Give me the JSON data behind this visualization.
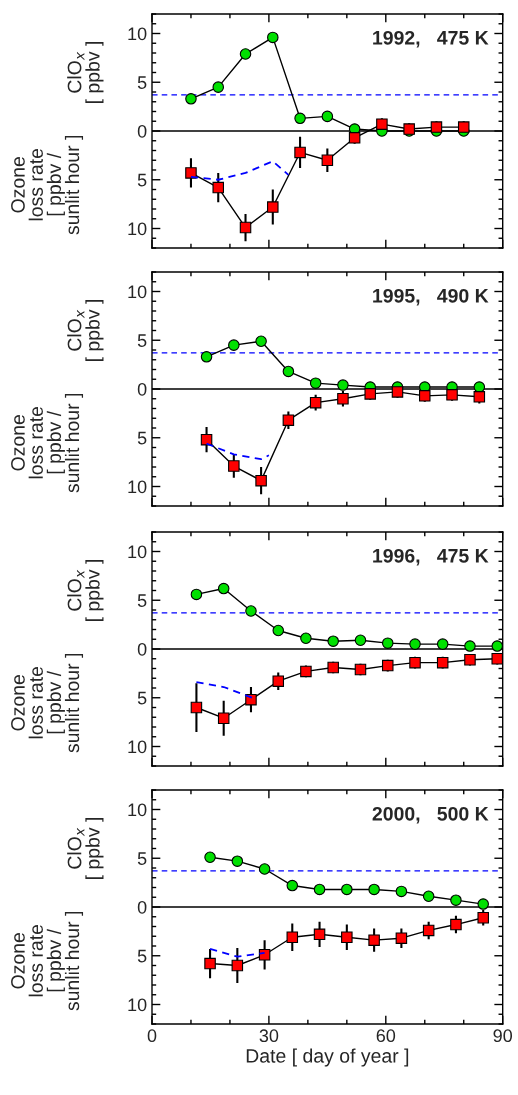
{
  "chart_data": [
    {
      "type": "line",
      "title": "1992,   475 K",
      "ylabel": "ClO$_{x}$\n[ ppbv ]",
      "annotations": [
        "Ozone\nloss rate\n[ ppbv /\nsunlit hour ]"
      ],
      "xlim": [
        0,
        90
      ],
      "xticks": [
        0,
        {
          "value": 10,
          "label": null
        },
        {
          "value": 20,
          "label": null
        },
        30,
        {
          "value": 40,
          "label": null
        },
        {
          "value": 50,
          "label": null
        },
        60,
        {
          "value": 70,
          "label": null
        },
        {
          "value": 80,
          "label": null
        },
        90
      ],
      "ylim": [
        -12,
        12
      ],
      "yticks": [
        {
          "value": -12,
          "label": null
        },
        {
          "value": -11,
          "label": null
        },
        {
          "value": -10,
          "label": "10"
        },
        {
          "value": -9,
          "label": null
        },
        {
          "value": -8,
          "label": null
        },
        {
          "value": -7,
          "label": null
        },
        {
          "value": -6,
          "label": null
        },
        {
          "value": -5,
          "label": "5"
        },
        {
          "value": -4,
          "label": null
        },
        {
          "value": -3,
          "label": null
        },
        {
          "value": -2,
          "label": null
        },
        {
          "value": -1,
          "label": null
        },
        0,
        {
          "value": 1,
          "label": null
        },
        {
          "value": 2,
          "label": null
        },
        {
          "value": 3,
          "label": null
        },
        {
          "value": 4,
          "label": null
        },
        5,
        {
          "value": 6,
          "label": null
        },
        {
          "value": 7,
          "label": null
        },
        {
          "value": 8,
          "label": null
        },
        {
          "value": 9,
          "label": null
        },
        10,
        {
          "value": 11,
          "label": null
        },
        {
          "value": 12,
          "label": null
        }
      ],
      "tick_labels": "y",
      "grid": false,
      "ref_lines": [
        {
          "axis": "y",
          "value": 0,
          "color": "#000000",
          "line_style": "solid"
        },
        {
          "axis": "y",
          "value": 3.7,
          "color": "#0000ff",
          "line_style": "dashed"
        }
      ],
      "series": [
        {
          "type": "line",
          "color": "#00e000",
          "marker": "circle",
          "line_style": "solid",
          "x": [
            10,
            17,
            24,
            31,
            38,
            45,
            52,
            59,
            66,
            73,
            80
          ],
          "values": [
            3.3,
            4.5,
            7.9,
            9.6,
            1.3,
            1.5,
            0.2,
            0,
            0,
            0,
            0
          ]
        },
        {
          "type": "line",
          "color": "#ff0000",
          "marker": "square",
          "line_style": "solid",
          "x": [
            10,
            17,
            24,
            31,
            38,
            45,
            52,
            59,
            66,
            73,
            80
          ],
          "values": [
            -4.3,
            -5.8,
            -9.9,
            -7.8,
            -2.2,
            -3.0,
            -0.7,
            0.7,
            0.2,
            0.4,
            0.4
          ],
          "errors": [
            1.5,
            1.5,
            1.4,
            1.8,
            1.6,
            1.2,
            0.6,
            0.6,
            0.6,
            0.6,
            0.6
          ]
        },
        {
          "type": "line",
          "color": "#0000ff",
          "marker": "none",
          "line_style": "dashed",
          "x": [
            10,
            17,
            24,
            31,
            35
          ],
          "values": [
            -4.7,
            -5.0,
            -4.3,
            -3.1,
            -4.5
          ]
        }
      ]
    },
    {
      "type": "line",
      "title": "1995,   490 K",
      "ylabel": "ClO$_{x}$\n[ ppbv ]",
      "annotations": [
        "Ozone\nloss rate\n[ ppbv /\nsunlit hour ]"
      ],
      "xlim": [
        0,
        90
      ],
      "xticks": [
        0,
        {
          "value": 10,
          "label": null
        },
        {
          "value": 20,
          "label": null
        },
        30,
        {
          "value": 40,
          "label": null
        },
        {
          "value": 50,
          "label": null
        },
        60,
        {
          "value": 70,
          "label": null
        },
        {
          "value": 80,
          "label": null
        },
        90
      ],
      "ylim": [
        -12,
        12
      ],
      "yticks": [
        {
          "value": -12,
          "label": null
        },
        {
          "value": -11,
          "label": null
        },
        {
          "value": -10,
          "label": "10"
        },
        {
          "value": -9,
          "label": null
        },
        {
          "value": -8,
          "label": null
        },
        {
          "value": -7,
          "label": null
        },
        {
          "value": -6,
          "label": null
        },
        {
          "value": -5,
          "label": "5"
        },
        {
          "value": -4,
          "label": null
        },
        {
          "value": -3,
          "label": null
        },
        {
          "value": -2,
          "label": null
        },
        {
          "value": -1,
          "label": null
        },
        0,
        {
          "value": 1,
          "label": null
        },
        {
          "value": 2,
          "label": null
        },
        {
          "value": 3,
          "label": null
        },
        {
          "value": 4,
          "label": null
        },
        5,
        {
          "value": 6,
          "label": null
        },
        {
          "value": 7,
          "label": null
        },
        {
          "value": 8,
          "label": null
        },
        {
          "value": 9,
          "label": null
        },
        10,
        {
          "value": 11,
          "label": null
        },
        {
          "value": 12,
          "label": null
        }
      ],
      "tick_labels": "y",
      "grid": false,
      "ref_lines": [
        {
          "axis": "y",
          "value": 0,
          "color": "#000000",
          "line_style": "solid"
        },
        {
          "axis": "y",
          "value": 3.7,
          "color": "#0000ff",
          "line_style": "dashed"
        }
      ],
      "series": [
        {
          "type": "line",
          "color": "#00e000",
          "marker": "circle",
          "line_style": "solid",
          "x": [
            14,
            21,
            28,
            35,
            42,
            49,
            56,
            63,
            70,
            77,
            84
          ],
          "values": [
            3.3,
            4.5,
            4.9,
            1.8,
            0.6,
            0.4,
            0.2,
            0.2,
            0.2,
            0.2,
            0.2
          ]
        },
        {
          "type": "line",
          "color": "#ff0000",
          "marker": "square",
          "line_style": "solid",
          "x": [
            14,
            21,
            28,
            35,
            42,
            49,
            56,
            63,
            70,
            77,
            84
          ],
          "values": [
            -5.2,
            -7.9,
            -9.4,
            -3.2,
            -1.4,
            -1.0,
            -0.5,
            -0.3,
            -0.7,
            -0.6,
            -0.8
          ],
          "errors": [
            1.3,
            1.2,
            1.4,
            0.9,
            0.8,
            0.8,
            0.6,
            0.6,
            0.6,
            0.6,
            0.7
          ]
        },
        {
          "type": "line",
          "color": "#0000ff",
          "marker": "none",
          "line_style": "dashed",
          "x": [
            14,
            21,
            28,
            30
          ],
          "values": [
            -5.6,
            -6.7,
            -7.2,
            -6.8
          ]
        }
      ]
    },
    {
      "type": "line",
      "title": "1996,   475 K",
      "ylabel": "ClO$_{x}$\n[ ppbv ]",
      "annotations": [
        "Ozone\nloss rate\n[ ppbv /\nsunlit hour ]"
      ],
      "xlim": [
        0,
        90
      ],
      "xticks": [
        0,
        {
          "value": 10,
          "label": null
        },
        {
          "value": 20,
          "label": null
        },
        30,
        {
          "value": 40,
          "label": null
        },
        {
          "value": 50,
          "label": null
        },
        60,
        {
          "value": 70,
          "label": null
        },
        {
          "value": 80,
          "label": null
        },
        90
      ],
      "ylim": [
        -12,
        12
      ],
      "yticks": [
        {
          "value": -12,
          "label": null
        },
        {
          "value": -11,
          "label": null
        },
        {
          "value": -10,
          "label": "10"
        },
        {
          "value": -9,
          "label": null
        },
        {
          "value": -8,
          "label": null
        },
        {
          "value": -7,
          "label": null
        },
        {
          "value": -6,
          "label": null
        },
        {
          "value": -5,
          "label": "5"
        },
        {
          "value": -4,
          "label": null
        },
        {
          "value": -3,
          "label": null
        },
        {
          "value": -2,
          "label": null
        },
        {
          "value": -1,
          "label": null
        },
        0,
        {
          "value": 1,
          "label": null
        },
        {
          "value": 2,
          "label": null
        },
        {
          "value": 3,
          "label": null
        },
        {
          "value": 4,
          "label": null
        },
        5,
        {
          "value": 6,
          "label": null
        },
        {
          "value": 7,
          "label": null
        },
        {
          "value": 8,
          "label": null
        },
        {
          "value": 9,
          "label": null
        },
        10,
        {
          "value": 11,
          "label": null
        },
        {
          "value": 12,
          "label": null
        }
      ],
      "tick_labels": "y",
      "grid": false,
      "ref_lines": [
        {
          "axis": "y",
          "value": 0,
          "color": "#000000",
          "line_style": "solid"
        },
        {
          "axis": "y",
          "value": 3.7,
          "color": "#0000ff",
          "line_style": "dashed"
        }
      ],
      "series": [
        {
          "type": "line",
          "color": "#00e000",
          "marker": "circle",
          "line_style": "solid",
          "x": [
            11.4,
            18.4,
            25.4,
            32.4,
            39.5,
            46.5,
            53.5,
            60.5,
            67.5,
            74.6,
            81.6,
            88.6
          ],
          "values": [
            5.6,
            6.2,
            3.9,
            1.9,
            1.1,
            0.8,
            0.9,
            0.6,
            0.5,
            0.5,
            0.3,
            0.3
          ]
        },
        {
          "type": "line",
          "color": "#ff0000",
          "marker": "square",
          "line_style": "solid",
          "x": [
            11.4,
            18.4,
            25.4,
            32.4,
            39.5,
            46.5,
            53.5,
            60.5,
            67.5,
            74.6,
            81.6,
            88.6
          ],
          "values": [
            -6.0,
            -7.1,
            -5.2,
            -3.3,
            -2.3,
            -1.9,
            -2.1,
            -1.7,
            -1.4,
            -1.4,
            -1.1,
            -1.0
          ],
          "errors": [
            2.5,
            1.8,
            1.3,
            0.9,
            0.6,
            0.6,
            0.6,
            0.6,
            0.6,
            0.6,
            0.6,
            0.6
          ]
        },
        {
          "type": "line",
          "color": "#0000ff",
          "marker": "none",
          "line_style": "dashed",
          "x": [
            11.4,
            18.4,
            26.4
          ],
          "values": [
            -3.4,
            -3.9,
            -5.1
          ]
        }
      ]
    },
    {
      "type": "line",
      "title": "2000,   500 K",
      "ylabel": "ClO$_{x}$\n[ ppbv ]",
      "xlabel": "Date [ day of year ]",
      "annotations": [
        "Ozone\nloss rate\n[ ppbv /\nsunlit hour ]"
      ],
      "xlim": [
        0,
        90
      ],
      "xticks": [
        0,
        {
          "value": 10,
          "label": null
        },
        {
          "value": 20,
          "label": null
        },
        30,
        {
          "value": 40,
          "label": null
        },
        {
          "value": 50,
          "label": null
        },
        60,
        {
          "value": 70,
          "label": null
        },
        {
          "value": 80,
          "label": null
        },
        90
      ],
      "ylim": [
        -12,
        12
      ],
      "yticks": [
        {
          "value": -12,
          "label": null
        },
        {
          "value": -11,
          "label": null
        },
        {
          "value": -10,
          "label": "10"
        },
        {
          "value": -9,
          "label": null
        },
        {
          "value": -8,
          "label": null
        },
        {
          "value": -7,
          "label": null
        },
        {
          "value": -6,
          "label": null
        },
        {
          "value": -5,
          "label": "5"
        },
        {
          "value": -4,
          "label": null
        },
        {
          "value": -3,
          "label": null
        },
        {
          "value": -2,
          "label": null
        },
        {
          "value": -1,
          "label": null
        },
        0,
        {
          "value": 1,
          "label": null
        },
        {
          "value": 2,
          "label": null
        },
        {
          "value": 3,
          "label": null
        },
        {
          "value": 4,
          "label": null
        },
        5,
        {
          "value": 6,
          "label": null
        },
        {
          "value": 7,
          "label": null
        },
        {
          "value": 8,
          "label": null
        },
        {
          "value": 9,
          "label": null
        },
        10,
        {
          "value": 11,
          "label": null
        },
        {
          "value": 12,
          "label": null
        }
      ],
      "grid": false,
      "ref_lines": [
        {
          "axis": "y",
          "value": 0,
          "color": "#000000",
          "line_style": "solid"
        },
        {
          "axis": "y",
          "value": 3.7,
          "color": "#0000ff",
          "line_style": "dashed"
        }
      ],
      "series": [
        {
          "type": "line",
          "color": "#00e000",
          "marker": "circle",
          "line_style": "solid",
          "x": [
            14.9,
            21.9,
            28.9,
            36,
            43,
            50,
            57,
            64,
            71,
            78,
            85
          ],
          "values": [
            5.1,
            4.7,
            3.9,
            2.2,
            1.8,
            1.8,
            1.8,
            1.6,
            1.1,
            0.7,
            0.3
          ]
        },
        {
          "type": "line",
          "color": "#ff0000",
          "marker": "square",
          "line_style": "solid",
          "x": [
            14.9,
            21.9,
            28.9,
            36,
            43,
            50,
            57,
            64,
            71,
            78,
            85
          ],
          "values": [
            -5.8,
            -6.0,
            -4.9,
            -3.1,
            -2.8,
            -3.1,
            -3.4,
            -3.2,
            -2.4,
            -1.8,
            -1.1
          ],
          "errors": [
            1.5,
            1.8,
            1.5,
            1.4,
            1.3,
            1.3,
            1.2,
            1.0,
            0.9,
            0.9,
            0.8
          ]
        },
        {
          "type": "line",
          "color": "#0000ff",
          "marker": "none",
          "line_style": "dashed",
          "x": [
            14.9,
            21.9,
            28.9
          ],
          "values": [
            -4.3,
            -5.1,
            -4.7
          ]
        }
      ]
    }
  ]
}
